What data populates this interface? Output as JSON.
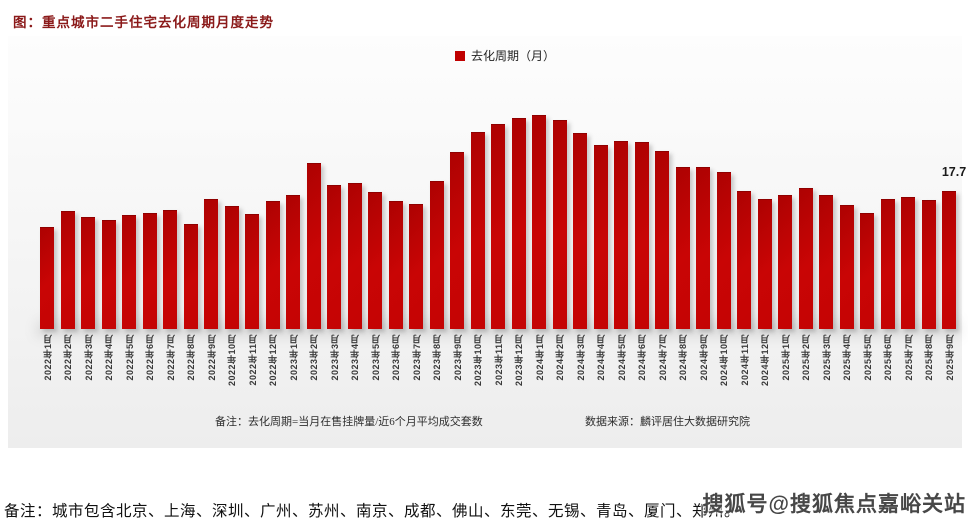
{
  "page": {
    "title": "图：重点城市二手住宅去化周期月度走势"
  },
  "legend": {
    "label": "去化周期（月）",
    "color": "#c00000"
  },
  "chart_data": {
    "type": "bar",
    "title": "重点城市二手住宅去化周期月度走势",
    "series_name": "去化周期（月）",
    "categories": [
      "2022年1月",
      "2022年2月",
      "2022年3月",
      "2022年4月",
      "2022年5月",
      "2022年6月",
      "2022年7月",
      "2022年8月",
      "2022年9月",
      "2022年10月",
      "2022年11月",
      "2022年12月",
      "2023年1月",
      "2023年2月",
      "2023年3月",
      "2023年4月",
      "2023年5月",
      "2023年6月",
      "2023年7月",
      "2023年8月",
      "2023年9月",
      "2023年10月",
      "2023年11月",
      "2023年12月",
      "2024年1月",
      "2024年2月",
      "2024年3月",
      "2024年4月",
      "2024年5月",
      "2024年6月",
      "2024年7月",
      "2024年8月",
      "2024年9月",
      "2024年10月",
      "2024年11月",
      "2024年12月",
      "2025年1月",
      "2025年2月",
      "2025年3月",
      "2025年4月",
      "2025年5月",
      "2025年6月",
      "2025年7月",
      "2025年8月",
      "2025年9月"
    ],
    "values": [
      13.0,
      15.1,
      14.4,
      14.0,
      14.6,
      14.9,
      15.3,
      13.4,
      16.7,
      15.7,
      14.7,
      16.4,
      17.2,
      21.3,
      18.4,
      18.7,
      17.5,
      16.4,
      16.0,
      18.9,
      22.7,
      25.2,
      26.2,
      27.0,
      27.4,
      26.8,
      25.1,
      23.5,
      24.1,
      23.9,
      22.8,
      20.7,
      20.7,
      20.1,
      17.7,
      16.6,
      17.2,
      18.1,
      17.1,
      15.9,
      14.9,
      16.6,
      16.9,
      16.5,
      17.7
    ],
    "last_point_label": "17.7",
    "xlabel": "",
    "ylabel": "去化周期（月）",
    "ylim": [
      0,
      30
    ],
    "grid": false,
    "axes_visible": false,
    "bar_color": "#c00000",
    "legend_position": "top-center"
  },
  "footnotes": {
    "formula": "备注：去化周期=当月在售挂牌量/近6个月平均成交套数",
    "source": "数据来源：麟评居住大数据研究院"
  },
  "cities_note": "备注：城市包含北京、上海、深圳、广州、苏州、南京、成都、佛山、东莞、无锡、青岛、厦门、郑州。",
  "watermark": "搜狐号@搜狐焦点嘉峪关站"
}
